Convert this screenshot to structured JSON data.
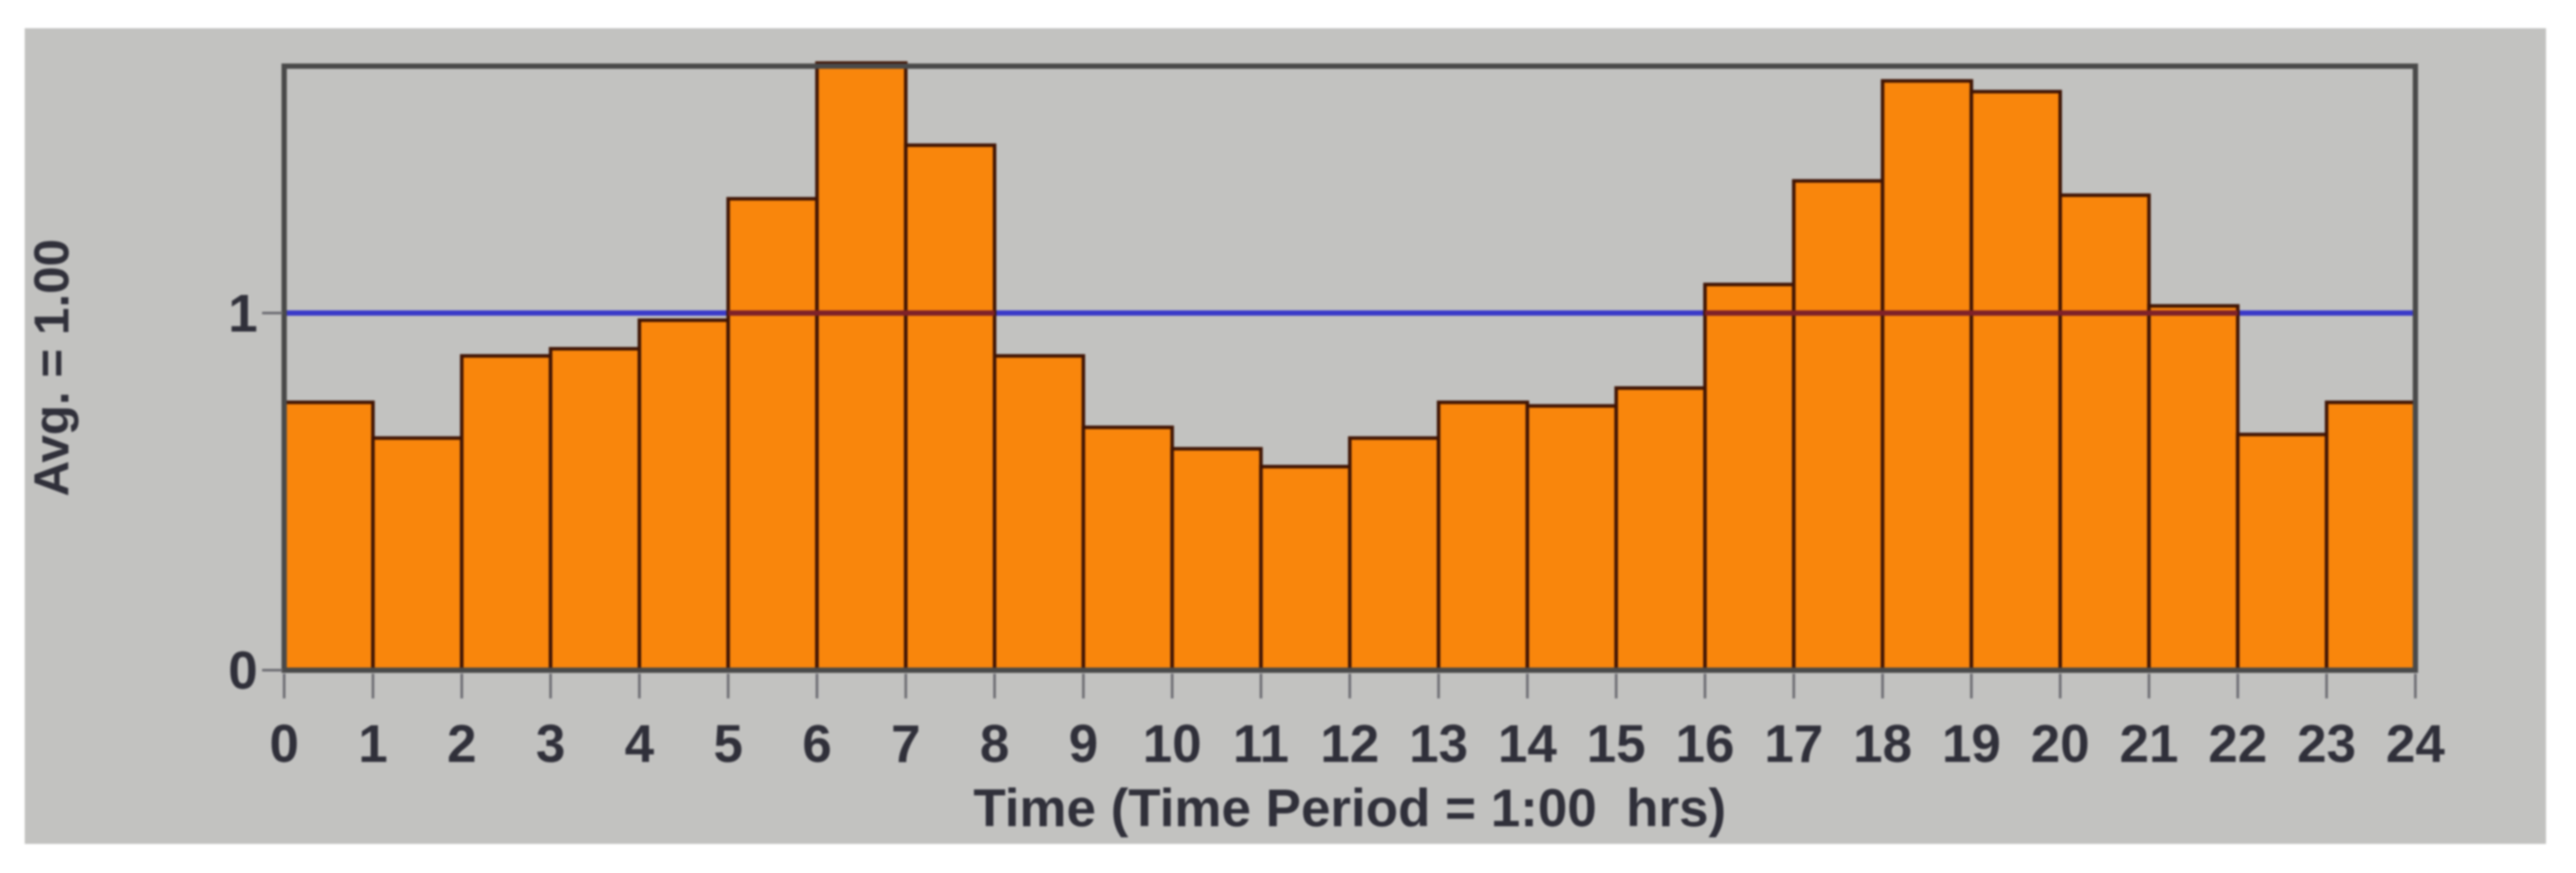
{
  "chart_data": {
    "type": "bar",
    "title": "",
    "xlabel": "Time (Time Period = 1:00  hrs)",
    "ylabel": "Avg. = 1.00",
    "categories": [
      0,
      1,
      2,
      3,
      4,
      5,
      6,
      7,
      8,
      9,
      10,
      11,
      12,
      13,
      14,
      15,
      16,
      17,
      18,
      19,
      20,
      21,
      22,
      23
    ],
    "values": [
      0.75,
      0.65,
      0.88,
      0.9,
      0.98,
      1.32,
      1.7,
      1.47,
      0.88,
      0.68,
      0.62,
      0.57,
      0.65,
      0.75,
      0.74,
      0.79,
      1.08,
      1.37,
      1.65,
      1.62,
      1.33,
      1.02,
      0.66,
      0.75
    ],
    "x_ticks": [
      "0",
      "1",
      "2",
      "3",
      "4",
      "5",
      "6",
      "7",
      "8",
      "9",
      "10",
      "11",
      "12",
      "13",
      "14",
      "15",
      "16",
      "17",
      "18",
      "19",
      "20",
      "21",
      "22",
      "23",
      "24"
    ],
    "y_ticks": [
      {
        "label": "0",
        "value": 0
      },
      {
        "label": "1",
        "value": 1
      }
    ],
    "avg_line_value": 1.0,
    "xlim": [
      0,
      24
    ],
    "ylim": [
      0,
      1.69
    ],
    "grid": false,
    "legend": false
  },
  "colors": {
    "page_bg": "#FFFFFF",
    "panel_bg": "#C2C2C0",
    "bar_fill": "#F9860C",
    "bar_outline": "#401505",
    "avg_line": "#3A3AC8",
    "avg_line_over_bars": "#7E2129",
    "frame": "#4A4A4A",
    "tick": "#6E6E74",
    "text": "#30303A"
  }
}
